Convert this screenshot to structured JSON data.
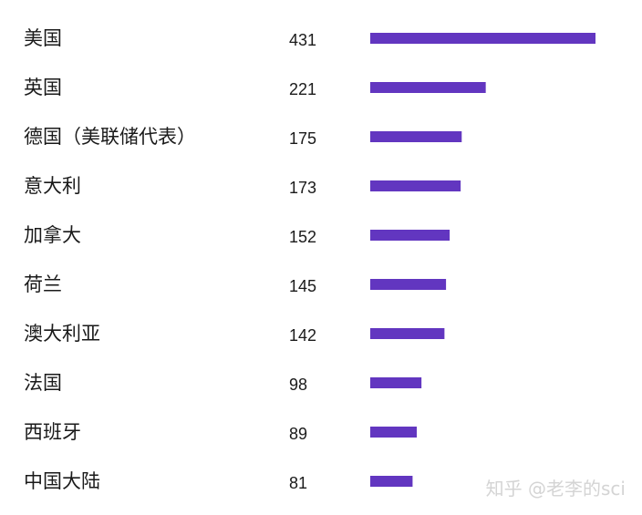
{
  "chart_data": {
    "type": "bar",
    "orientation": "horizontal",
    "categories": [
      "美国",
      "英国",
      "德国（美联储代表）",
      "意大利",
      "加拿大",
      "荷兰",
      "澳大利亚",
      "法国",
      "西班牙",
      "中国大陆"
    ],
    "values": [
      431,
      221,
      175,
      173,
      152,
      145,
      142,
      98,
      89,
      81
    ],
    "title": "",
    "xlabel": "",
    "ylabel": "",
    "grid": false,
    "bar_color": "#6236c0"
  },
  "watermark": "知乎 @老李的sci"
}
